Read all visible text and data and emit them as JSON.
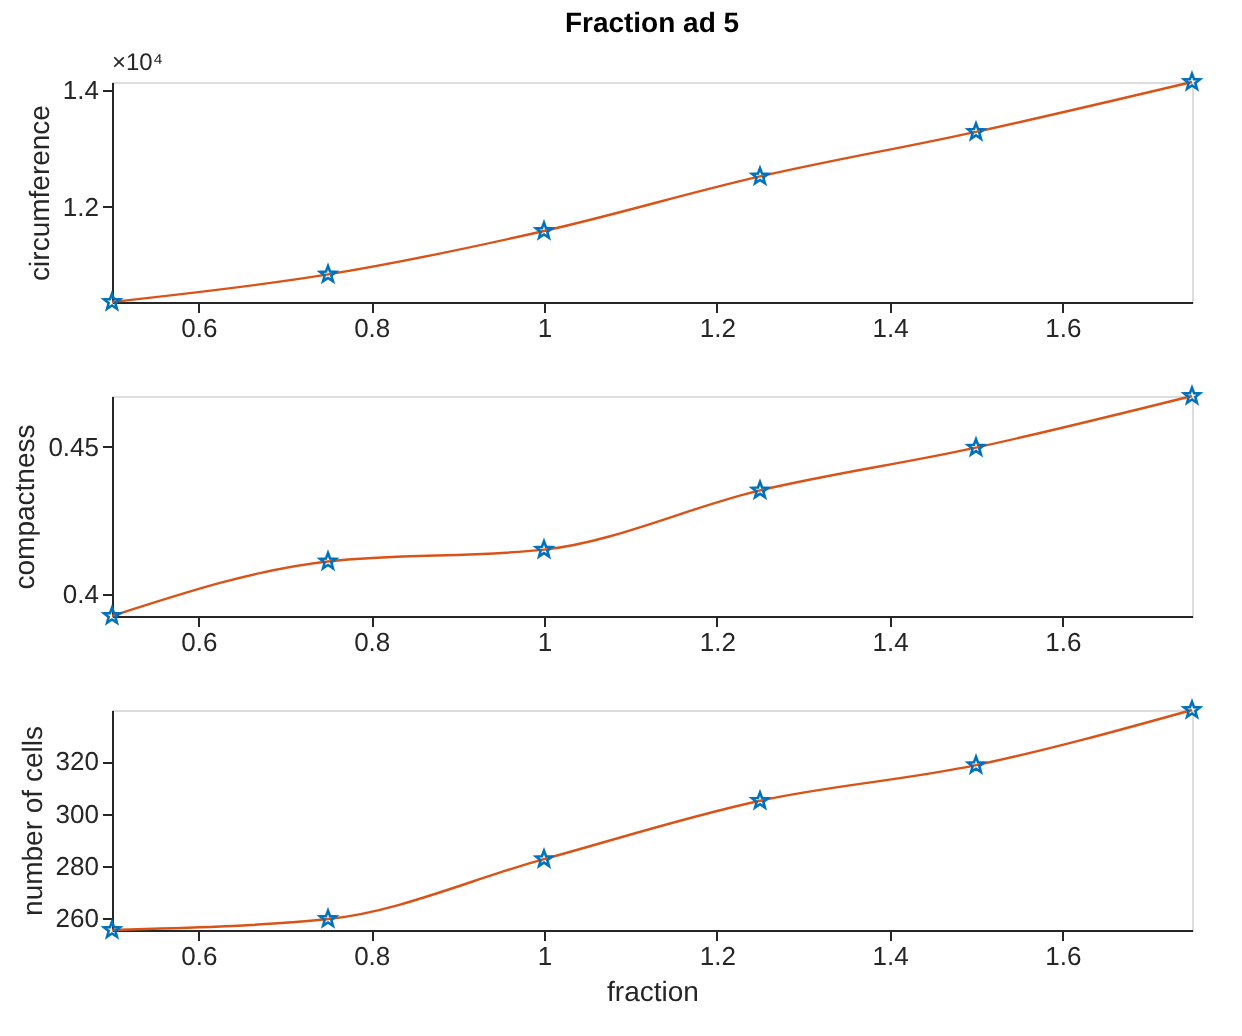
{
  "chart_data": [
    {
      "type": "line",
      "title": "Fraction ad 5",
      "ylabel": "circumference",
      "annotations": [
        "×10⁴"
      ],
      "x": [
        0.5,
        0.75,
        1.0,
        1.25,
        1.5,
        1.75
      ],
      "xlim": [
        0.5,
        1.75
      ],
      "xticks": [
        0.6,
        0.8,
        1,
        1.2,
        1.4,
        1.6
      ],
      "ylim": [
        1.038,
        1.413
      ],
      "yticks": [
        1.2,
        1.4
      ],
      "series": [
        {
          "type": "line",
          "color": "#d95319",
          "line_style": "solid",
          "values": [
            1.038,
            1.085,
            1.159,
            1.252,
            1.328,
            1.413
          ]
        },
        {
          "type": "scatter",
          "color": "#0072bd",
          "marker": "star",
          "values": [
            1.038,
            1.085,
            1.159,
            1.252,
            1.328,
            1.413
          ]
        }
      ]
    },
    {
      "type": "line",
      "ylabel": "compactness",
      "x": [
        0.5,
        0.75,
        1.0,
        1.25,
        1.5,
        1.75
      ],
      "xlim": [
        0.5,
        1.75
      ],
      "xticks": [
        0.6,
        0.8,
        1,
        1.2,
        1.4,
        1.6
      ],
      "ylim": [
        0.3926,
        0.4672
      ],
      "yticks": [
        0.4,
        0.45
      ],
      "series": [
        {
          "type": "line",
          "color": "#d95319",
          "line_style": "solid",
          "values": [
            0.3926,
            0.4111,
            0.4151,
            0.4352,
            0.4497,
            0.4672
          ]
        },
        {
          "type": "scatter",
          "color": "#0072bd",
          "marker": "star",
          "values": [
            0.3926,
            0.4111,
            0.4151,
            0.4352,
            0.4497,
            0.4672
          ]
        }
      ]
    },
    {
      "type": "line",
      "xlabel": "fraction",
      "ylabel": "number of cells",
      "x": [
        0.5,
        0.75,
        1.0,
        1.25,
        1.5,
        1.75
      ],
      "xlim": [
        0.5,
        1.75
      ],
      "xticks": [
        0.6,
        0.8,
        1,
        1.2,
        1.4,
        1.6
      ],
      "ylim": [
        255.5,
        339.6
      ],
      "yticks": [
        260,
        280,
        300,
        320
      ],
      "series": [
        {
          "type": "line",
          "color": "#d95319",
          "line_style": "solid",
          "values": [
            255.5,
            259.7,
            282.6,
            304.9,
            318.5,
            339.6
          ]
        },
        {
          "type": "scatter",
          "color": "#0072bd",
          "marker": "star",
          "values": [
            255.5,
            259.7,
            282.6,
            304.9,
            318.5,
            339.6
          ]
        }
      ]
    }
  ]
}
